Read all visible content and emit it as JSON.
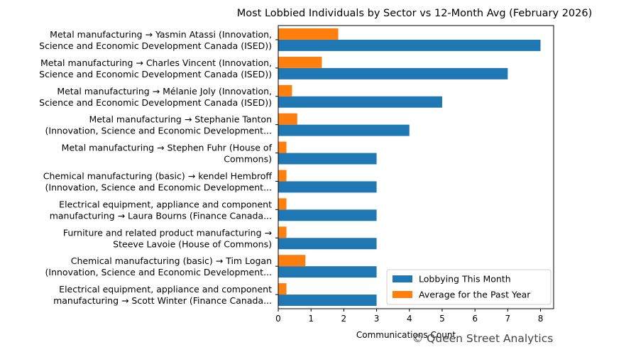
{
  "chart_data": {
    "type": "bar",
    "orientation": "horizontal",
    "title": "Most Lobbied Individuals by Sector vs 12-Month Avg (February 2026)",
    "xlabel": "Communications Count",
    "ylabel": "",
    "xlim": [
      0,
      8.4
    ],
    "xticks": [
      "0",
      "1",
      "2",
      "3",
      "4",
      "5",
      "6",
      "7",
      "8"
    ],
    "grid": false,
    "legend_position": "lower-right",
    "categories": [
      [
        "Metal manufacturing → Yasmin Atassi (Innovation,",
        "Science and Economic Development Canada (ISED))"
      ],
      [
        "Metal manufacturing → Charles Vincent (Innovation,",
        "Science and Economic Development Canada (ISED))"
      ],
      [
        "Metal manufacturing → Mélanie Joly (Innovation,",
        "Science and Economic Development Canada (ISED))"
      ],
      [
        "Metal manufacturing → Stephanie Tanton",
        "(Innovation, Science and Economic Development..."
      ],
      [
        "Metal manufacturing → Stephen Fuhr (House of",
        "Commons)"
      ],
      [
        "Chemical manufacturing (basic) → kendel  Hembroff",
        "(Innovation, Science and Economic Development..."
      ],
      [
        "Electrical equipment, appliance and component",
        "manufacturing → Laura Bourns (Finance Canada..."
      ],
      [
        "Furniture and related product manufacturing →",
        "Steeve Lavoie (House of Commons)"
      ],
      [
        "Chemical manufacturing (basic) → Tim Logan",
        "(Innovation, Science and Economic Development..."
      ],
      [
        "Electrical equipment, appliance and component",
        "manufacturing → Scott Winter (Finance Canada..."
      ]
    ],
    "series": [
      {
        "name": "Lobbying This Month",
        "color": "#1f77b4",
        "values": [
          8,
          7,
          5,
          4,
          3,
          3,
          3,
          3,
          3,
          3
        ]
      },
      {
        "name": "Average for the Past Year",
        "color": "#ff7f0e",
        "values": [
          1.83,
          1.33,
          0.42,
          0.58,
          0.25,
          0.25,
          0.25,
          0.25,
          0.83,
          0.25
        ]
      }
    ]
  },
  "watermark": "© Queen Street Analytics"
}
